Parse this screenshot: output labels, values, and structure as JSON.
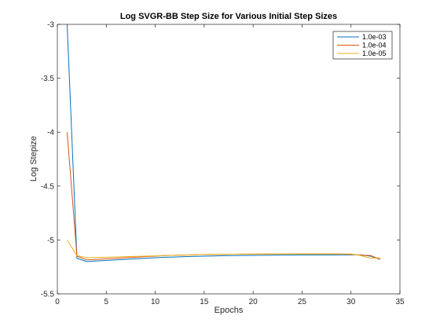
{
  "chart_data": {
    "type": "line",
    "title": "Log SVGR-BB Step Size for Various Initial Step Sizes",
    "xlabel": "Epochs",
    "ylabel": "Log Stepize",
    "xlim": [
      0,
      35
    ],
    "ylim": [
      -5.5,
      -3
    ],
    "xticks": [
      0,
      5,
      10,
      15,
      20,
      25,
      30,
      35
    ],
    "yticks": [
      -5.5,
      -5,
      -4.5,
      -4,
      -3.5,
      -3
    ],
    "grid": false,
    "legend_position": "top-right",
    "x": [
      1,
      2,
      3,
      4,
      5,
      6,
      7,
      8,
      9,
      10,
      11,
      12,
      13,
      14,
      15,
      16,
      17,
      18,
      19,
      20,
      21,
      22,
      23,
      24,
      25,
      26,
      27,
      28,
      29,
      30,
      31,
      32,
      33
    ],
    "series": [
      {
        "name": "1.0e-03",
        "color": "#0072bd",
        "values": [
          -3.0,
          -5.17,
          -5.2,
          -5.195,
          -5.19,
          -5.185,
          -5.18,
          -5.175,
          -5.17,
          -5.165,
          -5.16,
          -5.158,
          -5.155,
          -5.152,
          -5.15,
          -5.148,
          -5.146,
          -5.145,
          -5.144,
          -5.143,
          -5.142,
          -5.141,
          -5.14,
          -5.14,
          -5.139,
          -5.139,
          -5.139,
          -5.139,
          -5.138,
          -5.138,
          -5.138,
          -5.15,
          -5.18
        ]
      },
      {
        "name": "1.0e-04",
        "color": "#d95319",
        "values": [
          -4.0,
          -5.15,
          -5.185,
          -5.18,
          -5.175,
          -5.17,
          -5.165,
          -5.16,
          -5.155,
          -5.15,
          -5.145,
          -5.142,
          -5.14,
          -5.137,
          -5.135,
          -5.134,
          -5.133,
          -5.132,
          -5.131,
          -5.131,
          -5.13,
          -5.13,
          -5.13,
          -5.129,
          -5.129,
          -5.129,
          -5.129,
          -5.129,
          -5.129,
          -5.135,
          -5.14,
          -5.145,
          -5.18
        ]
      },
      {
        "name": "1.0e-05",
        "color": "#edb120",
        "values": [
          -5.0,
          -5.145,
          -5.165,
          -5.162,
          -5.16,
          -5.157,
          -5.155,
          -5.152,
          -5.15,
          -5.147,
          -5.145,
          -5.142,
          -5.14,
          -5.137,
          -5.135,
          -5.134,
          -5.133,
          -5.132,
          -5.131,
          -5.131,
          -5.13,
          -5.13,
          -5.13,
          -5.13,
          -5.13,
          -5.13,
          -5.13,
          -5.13,
          -5.13,
          -5.13,
          -5.145,
          -5.17,
          -5.165
        ]
      }
    ]
  }
}
